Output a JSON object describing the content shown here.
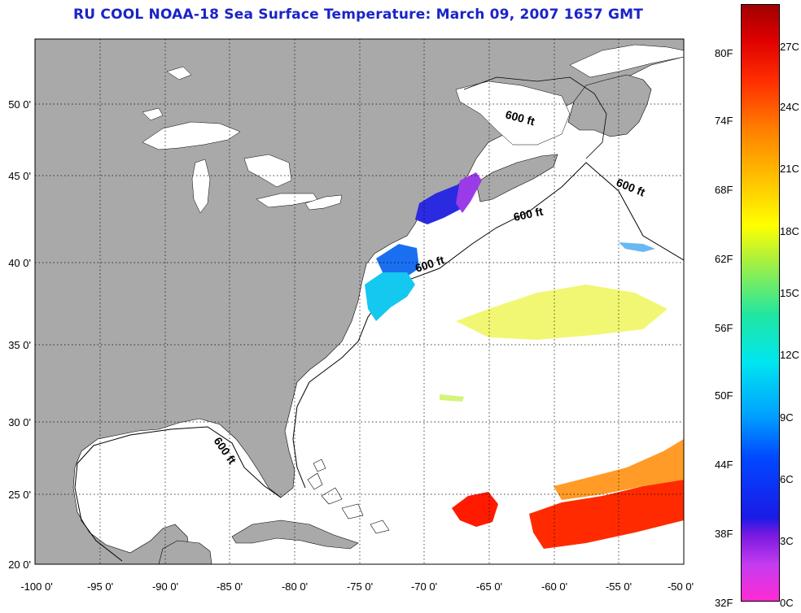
{
  "title": "RU COOL  NOAA-18  Sea Surface Temperature:  March 09, 2007 1657 GMT",
  "map": {
    "lon_ticks": [
      "-100 0'",
      "-95 0'",
      "-90 0'",
      "-85 0'",
      "-80 0'",
      "-75 0'",
      "-70 0'",
      "-65 0'",
      "-60 0'",
      "-55 0'",
      "-50 0'"
    ],
    "lat_ticks": [
      "50 0'",
      "45 0'",
      "40 0'",
      "35 0'",
      "30 0'",
      "25 0'",
      "20 0'"
    ],
    "isobath_labels": [
      "600 ft",
      "600 ft",
      "600 ft",
      "600 ft",
      "600 ft"
    ],
    "colors": {
      "land": "#a9a9a9",
      "ocean": "#ffffff",
      "grid": "#000000"
    }
  },
  "colorbar": {
    "fahrenheit": [
      "80F",
      "74F",
      "68F",
      "62F",
      "56F",
      "50F",
      "44F",
      "38F",
      "32F"
    ],
    "celsius": [
      "27C",
      "24C",
      "21C",
      "18C",
      "15C",
      "12C",
      "9C",
      "6C",
      "3C",
      "0C"
    ]
  }
}
